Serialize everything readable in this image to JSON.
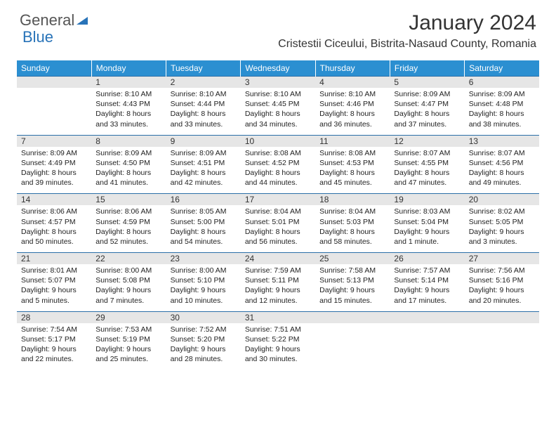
{
  "logo": {
    "part1": "General",
    "part2": "Blue"
  },
  "month": "January 2024",
  "location": "Cristestii Ciceului, Bistrita-Nasaud County, Romania",
  "colors": {
    "header_bg": "#2b8fd1",
    "rule": "#2b6fa8",
    "grey": "#e6e6e6"
  },
  "typography": {
    "month_fontsize": 30,
    "location_fontsize": 16,
    "dow_fontsize": 12,
    "cell_fontsize": 10.5
  },
  "days_of_week": [
    "Sunday",
    "Monday",
    "Tuesday",
    "Wednesday",
    "Thursday",
    "Friday",
    "Saturday"
  ],
  "weeks": [
    [
      {
        "n": ""
      },
      {
        "n": "1",
        "sr": "8:10 AM",
        "ss": "4:43 PM",
        "dl": "8 hours and 33 minutes."
      },
      {
        "n": "2",
        "sr": "8:10 AM",
        "ss": "4:44 PM",
        "dl": "8 hours and 33 minutes."
      },
      {
        "n": "3",
        "sr": "8:10 AM",
        "ss": "4:45 PM",
        "dl": "8 hours and 34 minutes."
      },
      {
        "n": "4",
        "sr": "8:10 AM",
        "ss": "4:46 PM",
        "dl": "8 hours and 36 minutes."
      },
      {
        "n": "5",
        "sr": "8:09 AM",
        "ss": "4:47 PM",
        "dl": "8 hours and 37 minutes."
      },
      {
        "n": "6",
        "sr": "8:09 AM",
        "ss": "4:48 PM",
        "dl": "8 hours and 38 minutes."
      }
    ],
    [
      {
        "n": "7",
        "sr": "8:09 AM",
        "ss": "4:49 PM",
        "dl": "8 hours and 39 minutes."
      },
      {
        "n": "8",
        "sr": "8:09 AM",
        "ss": "4:50 PM",
        "dl": "8 hours and 41 minutes."
      },
      {
        "n": "9",
        "sr": "8:09 AM",
        "ss": "4:51 PM",
        "dl": "8 hours and 42 minutes."
      },
      {
        "n": "10",
        "sr": "8:08 AM",
        "ss": "4:52 PM",
        "dl": "8 hours and 44 minutes."
      },
      {
        "n": "11",
        "sr": "8:08 AM",
        "ss": "4:53 PM",
        "dl": "8 hours and 45 minutes."
      },
      {
        "n": "12",
        "sr": "8:07 AM",
        "ss": "4:55 PM",
        "dl": "8 hours and 47 minutes."
      },
      {
        "n": "13",
        "sr": "8:07 AM",
        "ss": "4:56 PM",
        "dl": "8 hours and 49 minutes."
      }
    ],
    [
      {
        "n": "14",
        "sr": "8:06 AM",
        "ss": "4:57 PM",
        "dl": "8 hours and 50 minutes."
      },
      {
        "n": "15",
        "sr": "8:06 AM",
        "ss": "4:59 PM",
        "dl": "8 hours and 52 minutes."
      },
      {
        "n": "16",
        "sr": "8:05 AM",
        "ss": "5:00 PM",
        "dl": "8 hours and 54 minutes."
      },
      {
        "n": "17",
        "sr": "8:04 AM",
        "ss": "5:01 PM",
        "dl": "8 hours and 56 minutes."
      },
      {
        "n": "18",
        "sr": "8:04 AM",
        "ss": "5:03 PM",
        "dl": "8 hours and 58 minutes."
      },
      {
        "n": "19",
        "sr": "8:03 AM",
        "ss": "5:04 PM",
        "dl": "9 hours and 1 minute."
      },
      {
        "n": "20",
        "sr": "8:02 AM",
        "ss": "5:05 PM",
        "dl": "9 hours and 3 minutes."
      }
    ],
    [
      {
        "n": "21",
        "sr": "8:01 AM",
        "ss": "5:07 PM",
        "dl": "9 hours and 5 minutes."
      },
      {
        "n": "22",
        "sr": "8:00 AM",
        "ss": "5:08 PM",
        "dl": "9 hours and 7 minutes."
      },
      {
        "n": "23",
        "sr": "8:00 AM",
        "ss": "5:10 PM",
        "dl": "9 hours and 10 minutes."
      },
      {
        "n": "24",
        "sr": "7:59 AM",
        "ss": "5:11 PM",
        "dl": "9 hours and 12 minutes."
      },
      {
        "n": "25",
        "sr": "7:58 AM",
        "ss": "5:13 PM",
        "dl": "9 hours and 15 minutes."
      },
      {
        "n": "26",
        "sr": "7:57 AM",
        "ss": "5:14 PM",
        "dl": "9 hours and 17 minutes."
      },
      {
        "n": "27",
        "sr": "7:56 AM",
        "ss": "5:16 PM",
        "dl": "9 hours and 20 minutes."
      }
    ],
    [
      {
        "n": "28",
        "sr": "7:54 AM",
        "ss": "5:17 PM",
        "dl": "9 hours and 22 minutes."
      },
      {
        "n": "29",
        "sr": "7:53 AM",
        "ss": "5:19 PM",
        "dl": "9 hours and 25 minutes."
      },
      {
        "n": "30",
        "sr": "7:52 AM",
        "ss": "5:20 PM",
        "dl": "9 hours and 28 minutes."
      },
      {
        "n": "31",
        "sr": "7:51 AM",
        "ss": "5:22 PM",
        "dl": "9 hours and 30 minutes."
      },
      {
        "n": ""
      },
      {
        "n": ""
      },
      {
        "n": ""
      }
    ]
  ],
  "labels": {
    "sunrise": "Sunrise:",
    "sunset": "Sunset:",
    "daylight": "Daylight:"
  }
}
